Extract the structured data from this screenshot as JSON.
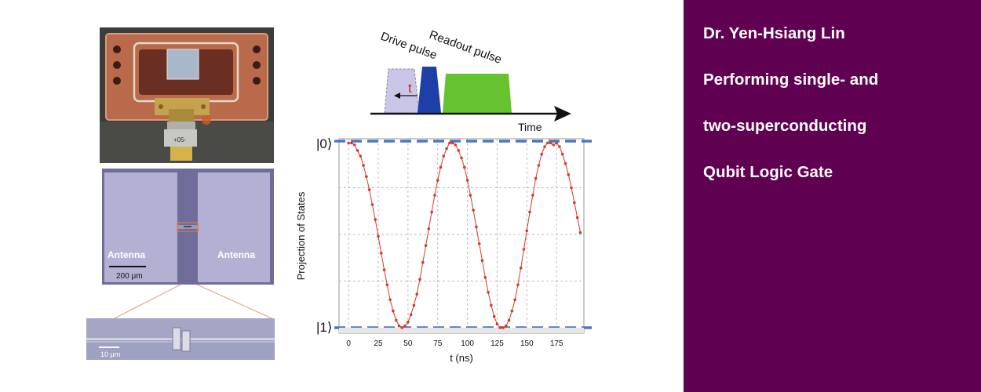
{
  "side_panel": {
    "name": "Dr. Yen-Hsiang Lin",
    "line1": "Performing single- and",
    "line2": "two-superconducting",
    "line3": "Qubit Logic Gate",
    "background": "#600051"
  },
  "device_photo": {
    "label": "+05-"
  },
  "chip_micrograph": {
    "left_label": "Antenna",
    "right_label": "Antenna",
    "scale_label": "200 μm"
  },
  "zoom_micrograph": {
    "scale_label": "10 μm"
  },
  "pulse_diagram": {
    "drive_label": "Drive pulse",
    "readout_label": "Readout pulse",
    "t_label": "t",
    "time_label": "Time",
    "colors": {
      "drive": "#1f3fa8",
      "readout": "#66c22e",
      "ghost": "#c9c6ea",
      "t": "#d22020"
    }
  },
  "chart_data": {
    "type": "scatter",
    "xlabel": "t (ns)",
    "ylabel": "Projection of States",
    "ytop_label": "|0⟩",
    "ybottom_label": "|1⟩",
    "xlim": [
      -8,
      198
    ],
    "ylim": [
      0,
      1
    ],
    "xticks": [
      0,
      25,
      50,
      75,
      100,
      125,
      150,
      175
    ],
    "x": [
      0,
      2.5,
      5,
      7.5,
      10,
      12.5,
      15,
      17.5,
      20,
      22.5,
      25,
      27.5,
      30,
      32.5,
      35,
      37.5,
      40,
      42.5,
      45,
      47.5,
      50,
      52.5,
      55,
      57.5,
      60,
      62.5,
      65,
      67.5,
      70,
      72.5,
      75,
      77.5,
      80,
      82.5,
      85,
      87.5,
      90,
      92.5,
      95,
      97.5,
      100,
      102.5,
      105,
      107.5,
      110,
      112.5,
      115,
      117.5,
      120,
      122.5,
      125,
      127.5,
      130,
      132.5,
      135,
      137.5,
      140,
      142.5,
      145,
      147.5,
      150,
      152.5,
      155,
      157.5,
      160,
      162.5,
      165,
      167.5,
      170,
      172.5,
      175,
      177.5,
      180,
      182.5,
      185,
      187.5,
      190,
      192.5,
      195
    ],
    "y": [
      0.99,
      0.99,
      0.98,
      0.95,
      0.92,
      0.87,
      0.81,
      0.74,
      0.66,
      0.58,
      0.49,
      0.4,
      0.31,
      0.23,
      0.15,
      0.09,
      0.04,
      0.01,
      0.0,
      0.01,
      0.03,
      0.07,
      0.12,
      0.18,
      0.26,
      0.35,
      0.44,
      0.53,
      0.62,
      0.71,
      0.79,
      0.86,
      0.92,
      0.96,
      0.99,
      0.99,
      0.98,
      0.95,
      0.91,
      0.86,
      0.79,
      0.71,
      0.63,
      0.54,
      0.45,
      0.36,
      0.27,
      0.19,
      0.12,
      0.06,
      0.02,
      0.0,
      0.0,
      0.01,
      0.04,
      0.09,
      0.15,
      0.23,
      0.32,
      0.42,
      0.52,
      0.62,
      0.71,
      0.8,
      0.87,
      0.93,
      0.97,
      0.99,
      0.99,
      0.98,
      0.99,
      0.97,
      0.93,
      0.88,
      0.82,
      0.75,
      0.67,
      0.59,
      0.51
    ],
    "point_color": "#d23b2e",
    "reference_line_color": "#4a79c0"
  }
}
